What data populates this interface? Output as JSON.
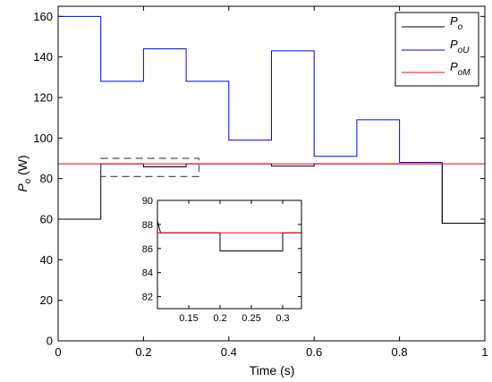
{
  "chart_data": [
    {
      "type": "line",
      "xlabel": "Time (s)",
      "ylabel": "P",
      "ylabel_sub": "o",
      "ylabel_unit": " (W)",
      "xlim": [
        0,
        1
      ],
      "ylim": [
        0,
        165
      ],
      "xticks": [
        0,
        0.2,
        0.4,
        0.6,
        0.8,
        1
      ],
      "xtick_labels": [
        "0",
        "0.2",
        "0.4",
        "0.6",
        "0.8",
        "1"
      ],
      "yticks": [
        0,
        20,
        40,
        60,
        80,
        100,
        120,
        140,
        160
      ],
      "ytick_labels": [
        "0",
        "20",
        "40",
        "60",
        "80",
        "100",
        "120",
        "140",
        "160"
      ],
      "legend_position": "top-right",
      "series": [
        {
          "name": "P_o",
          "name_main": "P",
          "name_sub": "o",
          "color": "#000000",
          "points": [
            [
              0,
              60
            ],
            [
              0.1,
              60
            ],
            [
              0.1,
              87.3
            ],
            [
              0.2,
              87.3
            ],
            [
              0.2,
              85.8
            ],
            [
              0.3,
              85.8
            ],
            [
              0.3,
              87.3
            ],
            [
              0.5,
              87.3
            ],
            [
              0.5,
              86.2
            ],
            [
              0.6,
              86.2
            ],
            [
              0.6,
              87.3
            ],
            [
              0.9,
              87.3
            ],
            [
              0.9,
              58
            ],
            [
              1.0,
              58
            ]
          ]
        },
        {
          "name": "P_oU",
          "name_main": "P",
          "name_sub": "oU",
          "color": "#0000ff",
          "points": [
            [
              0,
              160
            ],
            [
              0.1,
              160
            ],
            [
              0.1,
              128
            ],
            [
              0.2,
              128
            ],
            [
              0.2,
              144
            ],
            [
              0.3,
              144
            ],
            [
              0.3,
              128
            ],
            [
              0.4,
              128
            ],
            [
              0.4,
              99
            ],
            [
              0.5,
              99
            ],
            [
              0.5,
              143
            ],
            [
              0.6,
              143
            ],
            [
              0.6,
              91
            ],
            [
              0.7,
              91
            ],
            [
              0.7,
              109
            ],
            [
              0.8,
              109
            ],
            [
              0.8,
              88
            ],
            [
              0.9,
              88
            ],
            [
              0.9,
              58
            ],
            [
              1.0,
              58
            ]
          ]
        },
        {
          "name": "P_oM",
          "name_main": "P",
          "name_sub": "oM",
          "color": "#ff0000",
          "points": [
            [
              0,
              87.3
            ],
            [
              1.0,
              87.3
            ]
          ]
        }
      ]
    },
    {
      "type": "line",
      "role": "inset",
      "xlim": [
        0.1,
        0.33
      ],
      "ylim": [
        81,
        90
      ],
      "xticks": [
        0.15,
        0.2,
        0.25,
        0.3
      ],
      "xtick_labels": [
        "0.15",
        "0.2",
        "0.25",
        "0.3"
      ],
      "yticks": [
        82,
        84,
        86,
        88,
        90
      ],
      "ytick_labels": [
        "82",
        "84",
        "86",
        "88",
        "90"
      ],
      "series": [
        {
          "name": "P_o",
          "color": "#000000",
          "points": [
            [
              0.1,
              88.3
            ],
            [
              0.105,
              87.3
            ],
            [
              0.2,
              87.3
            ],
            [
              0.2,
              85.8
            ],
            [
              0.3,
              85.8
            ],
            [
              0.3,
              87.3
            ],
            [
              0.33,
              87.3
            ]
          ]
        },
        {
          "name": "P_oM",
          "color": "#ff0000",
          "points": [
            [
              0.1,
              87.3
            ],
            [
              0.33,
              87.3
            ]
          ]
        }
      ]
    }
  ]
}
